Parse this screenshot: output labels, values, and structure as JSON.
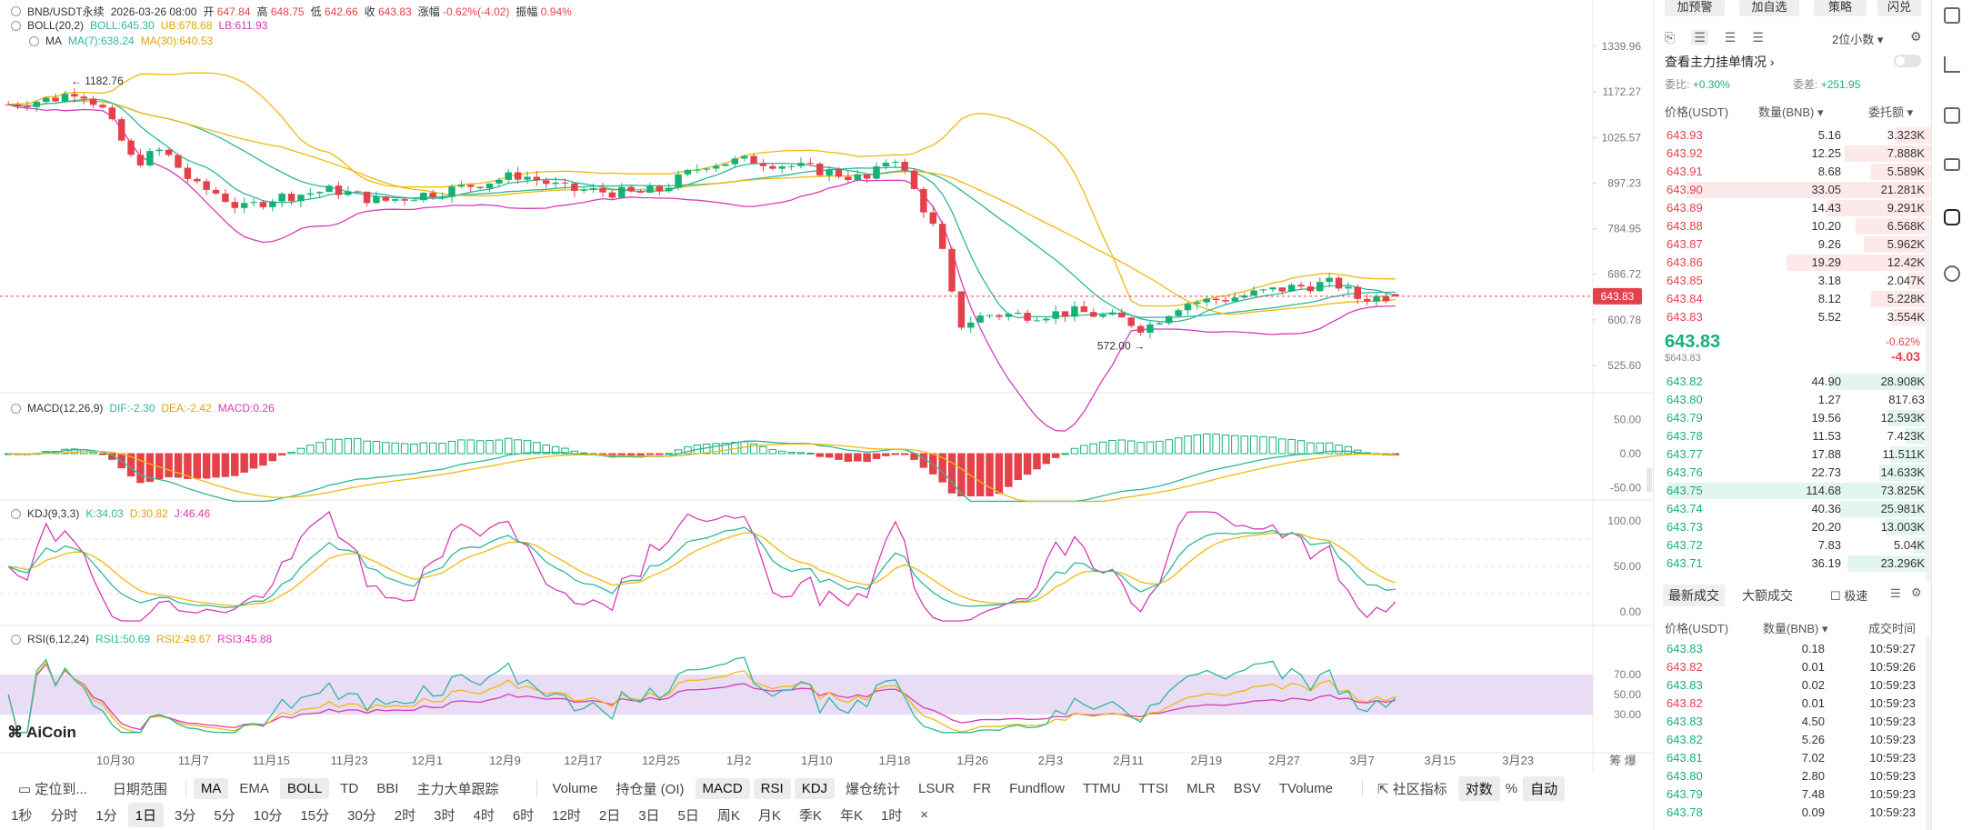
{
  "symbol_line": {
    "symbol": "BNB/USDT永续",
    "datetime": "2026-03-26 08:00",
    "open_label": "开",
    "open": "647.84",
    "high_label": "高",
    "high": "648.75",
    "low_label": "低",
    "low": "642.66",
    "close_label": "收",
    "close": "643.83",
    "change_label": "涨幅",
    "change": "-0.62%(-4.02)",
    "amp_label": "振幅",
    "amp": "0.94%"
  },
  "boll_line": {
    "name": "BOLL(20,2)",
    "mid": "BOLL:645.30",
    "ub": "UB:678.68",
    "lb": "LB:611.93"
  },
  "ma_line": {
    "name": "MA",
    "ma7": "MA(7):638.24",
    "ma30": "MA(30):640.53"
  },
  "macd_line": {
    "name": "MACD(12,26,9)",
    "dif": "DIF:-2.30",
    "dea": "DEA:-2.42",
    "macd": "MACD:0.26"
  },
  "kdj_line": {
    "name": "KDJ(9,3,3)",
    "k": "K:34.03",
    "d": "D:30.82",
    "j": "J:46.46"
  },
  "rsi_line": {
    "name": "RSI(6,12,24)",
    "rsi1": "RSI1:50.69",
    "rsi2": "RSI2:49.67",
    "rsi3": "RSI3:45.88"
  },
  "price_axis": [
    "1339.96",
    "1172.27",
    "1025.57",
    "897.23",
    "784.95",
    "686.72",
    "600.78",
    "525.60"
  ],
  "current_price_tag": "643.83",
  "high_marker": "1182.76",
  "low_marker": "572.00",
  "macd_axis": [
    "50.00",
    "0.00",
    "-50.00"
  ],
  "kdj_axis": [
    "100.00",
    "50.00",
    "0.00"
  ],
  "rsi_axis": [
    "70.00",
    "50.00",
    "30.00"
  ],
  "date_axis": [
    "10月30",
    "11月7",
    "11月15",
    "11月23",
    "12月1",
    "12月9",
    "12月17",
    "12月25",
    "1月2",
    "1月10",
    "1月18",
    "1月26",
    "2月3",
    "2月11",
    "2月19",
    "2月27",
    "3月7",
    "3月15",
    "3月23"
  ],
  "date_axis_right": "筹 爆",
  "watermark": "AiCoin",
  "colors": {
    "up": "#16b175",
    "down": "#e5414b",
    "boll_mid": "#2bb89a",
    "boll_ub": "#f0b90b",
    "boll_lb": "#d83ab5",
    "ma7": "#2bb89a",
    "ma30": "#f0b90b",
    "rsi_band": "#e9dcf5"
  },
  "toolbar_row1": {
    "locate": "定位到...",
    "date_range": "日期范围",
    "indicators": [
      "MA",
      "EMA",
      "BOLL",
      "TD",
      "BBI",
      "主力大单跟踪"
    ],
    "sub_indicators": [
      "Volume",
      "持仓量 (OI)",
      "MACD",
      "RSI",
      "KDJ",
      "爆仓统计",
      "LSUR",
      "FR",
      "Fundflow",
      "TTMU",
      "TTSI",
      "MLR",
      "BSV",
      "TVolume"
    ],
    "community": "社区指标",
    "log": "对数",
    "percent": "%",
    "auto": "自动"
  },
  "toolbar_row2": {
    "intervals": [
      "1秒",
      "分时",
      "1分",
      "1日",
      "3分",
      "5分",
      "10分",
      "15分",
      "30分",
      "2时",
      "3时",
      "4时",
      "6时",
      "12时",
      "2日",
      "3日",
      "5日",
      "周K",
      "月K",
      "季K",
      "年K",
      "1时"
    ],
    "active": "1日",
    "close": "×"
  },
  "right_panel": {
    "top_buttons": [
      "加预警",
      "加自选",
      "策略",
      "闪兑"
    ],
    "decimals": "2位小数",
    "view_orders": "查看主力挂单情况",
    "ratio_label": "委比:",
    "ratio_value": "+0.30%",
    "diff_label": "委差:",
    "diff_value": "+251.95",
    "col_price": "价格(USDT)",
    "col_qty": "数量(BNB)",
    "col_amt": "委托额",
    "asks": [
      {
        "price": "643.93",
        "qty": "5.16",
        "amt": "3.323K",
        "depth": 0.14
      },
      {
        "price": "643.92",
        "qty": "12.25",
        "amt": "7.888K",
        "depth": 0.33
      },
      {
        "price": "643.91",
        "qty": "8.68",
        "amt": "5.589K",
        "depth": 0.23
      },
      {
        "price": "643.90",
        "qty": "33.05",
        "amt": "21.281K",
        "depth": 0.93
      },
      {
        "price": "643.89",
        "qty": "14.43",
        "amt": "9.291K",
        "depth": 0.4
      },
      {
        "price": "643.88",
        "qty": "10.20",
        "amt": "6.568K",
        "depth": 0.29
      },
      {
        "price": "643.87",
        "qty": "9.26",
        "amt": "5.962K",
        "depth": 0.26
      },
      {
        "price": "643.86",
        "qty": "19.29",
        "amt": "12.42K",
        "depth": 0.55
      },
      {
        "price": "643.85",
        "qty": "3.18",
        "amt": "2.047K",
        "depth": 0.09
      },
      {
        "price": "643.84",
        "qty": "8.12",
        "amt": "5.228K",
        "depth": 0.23
      },
      {
        "price": "643.83",
        "qty": "5.52",
        "amt": "3.554K",
        "depth": 0.15
      }
    ],
    "last_price": "643.83",
    "last_price_usd": "$643.83",
    "last_change_pct": "-0.62%",
    "last_change": "-4.03",
    "bids": [
      {
        "price": "643.82",
        "qty": "44.90",
        "amt": "28.908K",
        "depth": 0.39
      },
      {
        "price": "643.80",
        "qty": "1.27",
        "amt": "817.63",
        "depth": 0.01
      },
      {
        "price": "643.79",
        "qty": "19.56",
        "amt": "12.593K",
        "depth": 0.17
      },
      {
        "price": "643.78",
        "qty": "11.53",
        "amt": "7.423K",
        "depth": 0.1
      },
      {
        "price": "643.77",
        "qty": "17.88",
        "amt": "11.511K",
        "depth": 0.16
      },
      {
        "price": "643.76",
        "qty": "22.73",
        "amt": "14.633K",
        "depth": 0.2
      },
      {
        "price": "643.75",
        "qty": "114.68",
        "amt": "73.825K",
        "depth": 1.0
      },
      {
        "price": "643.74",
        "qty": "40.36",
        "amt": "25.981K",
        "depth": 0.35
      },
      {
        "price": "643.73",
        "qty": "20.20",
        "amt": "13.003K",
        "depth": 0.18
      },
      {
        "price": "643.72",
        "qty": "7.83",
        "amt": "5.04K",
        "depth": 0.07
      },
      {
        "price": "643.71",
        "qty": "36.19",
        "amt": "23.296K",
        "depth": 0.32
      }
    ],
    "trades_tab_latest": "最新成交",
    "trades_tab_large": "大额成交",
    "fast_label": "极速",
    "trades_col_price": "价格(USDT)",
    "trades_col_qty": "数量(BNB)",
    "trades_col_time": "成交时间",
    "trades": [
      {
        "price": "643.83",
        "qty": "0.18",
        "time": "10:59:27",
        "side": "buy"
      },
      {
        "price": "643.82",
        "qty": "0.01",
        "time": "10:59:26",
        "side": "sell"
      },
      {
        "price": "643.83",
        "qty": "0.02",
        "time": "10:59:23",
        "side": "buy"
      },
      {
        "price": "643.82",
        "qty": "0.01",
        "time": "10:59:23",
        "side": "sell"
      },
      {
        "price": "643.83",
        "qty": "4.50",
        "time": "10:59:23",
        "side": "buy"
      },
      {
        "price": "643.82",
        "qty": "5.26",
        "time": "10:59:23",
        "side": "buy"
      },
      {
        "price": "643.81",
        "qty": "7.02",
        "time": "10:59:23",
        "side": "buy"
      },
      {
        "price": "643.80",
        "qty": "2.80",
        "time": "10:59:23",
        "side": "buy"
      },
      {
        "price": "643.79",
        "qty": "7.48",
        "time": "10:59:23",
        "side": "buy"
      },
      {
        "price": "643.78",
        "qty": "0.09",
        "time": "10:59:23",
        "side": "buy"
      }
    ]
  }
}
